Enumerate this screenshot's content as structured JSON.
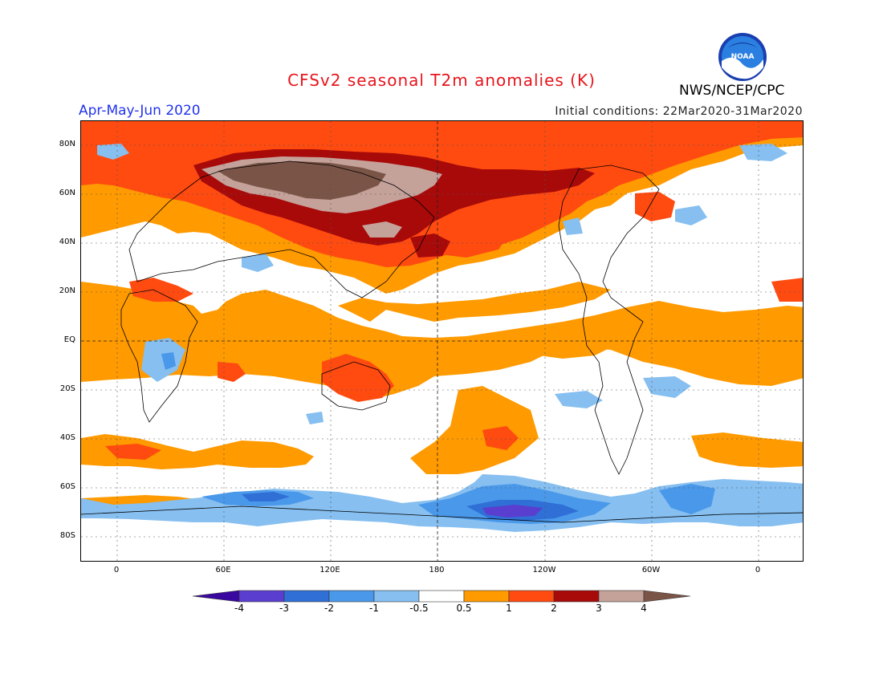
{
  "title": "CFSv2 seasonal T2m anomalies (K)",
  "period": "Apr-May-Jun 2020",
  "initial_conditions": "Initial conditions: 22Mar2020-31Mar2020",
  "agency": "NWS/NCEP/CPC",
  "logo_text": "NOAA",
  "lat_labels": [
    "80N",
    "60N",
    "40N",
    "20N",
    "EQ",
    "20S",
    "40S",
    "60S",
    "80S"
  ],
  "lon_labels": [
    "0",
    "60E",
    "120E",
    "180",
    "120W",
    "60W",
    "0"
  ],
  "colorbar": {
    "labels": [
      "-4",
      "-3",
      "-2",
      "-1",
      "-0.5",
      "0.5",
      "1",
      "2",
      "3",
      "4"
    ],
    "colors": [
      "#3a08a0",
      "#5a3ed0",
      "#2f6fd6",
      "#4a98ea",
      "#86bff0",
      "#ffffff",
      "#ff9a00",
      "#ff4a10",
      "#a80a0a",
      "#c4a29a",
      "#7a5446"
    ]
  },
  "colors": {
    "title": "#e8141c",
    "period": "#2233ee",
    "ocean_background": "#ffffff"
  }
}
